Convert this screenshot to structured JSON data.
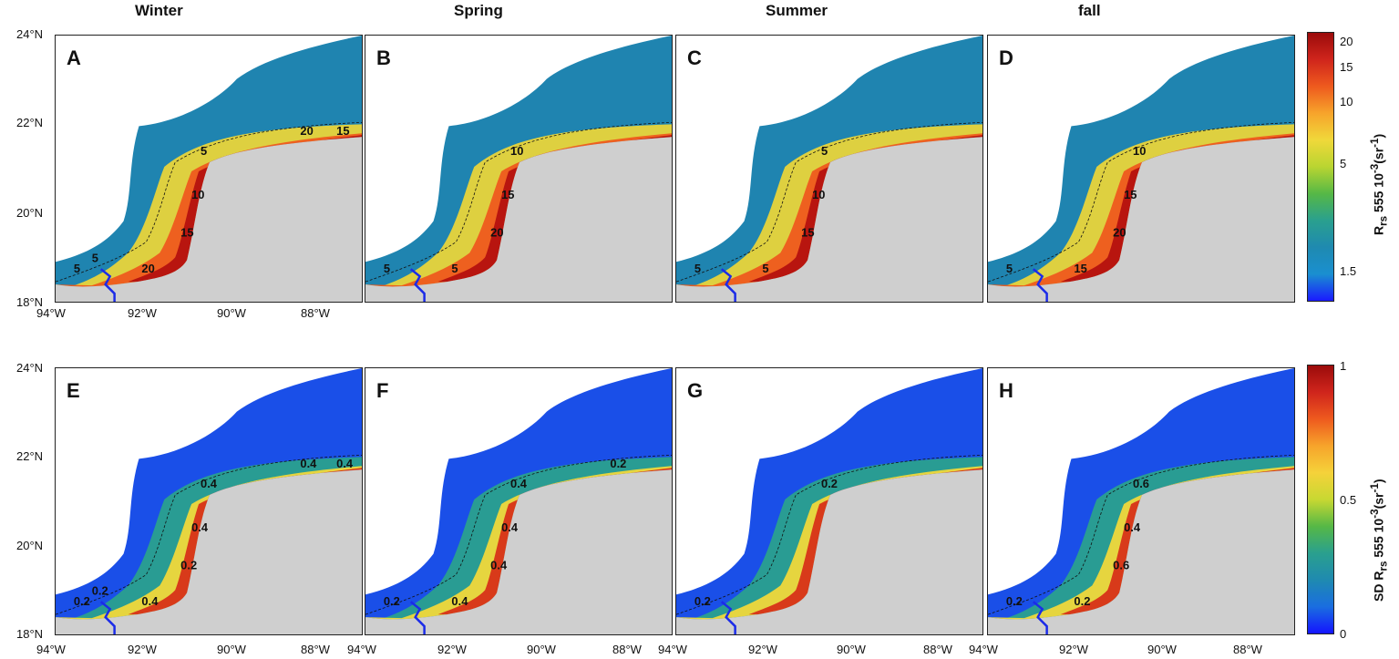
{
  "seasons": [
    "Winter",
    "Spring",
    "Summer",
    "fall"
  ],
  "rows": [
    {
      "panels": [
        {
          "letter": "A",
          "contours": [
            "5",
            "5",
            "10",
            "15",
            "20",
            "20",
            "15",
            "5"
          ]
        },
        {
          "letter": "B",
          "contours": [
            "5",
            "10",
            "15",
            "20",
            "5"
          ]
        },
        {
          "letter": "C",
          "contours": [
            "5",
            "5",
            "10",
            "15",
            "5"
          ]
        },
        {
          "letter": "D",
          "contours": [
            "5",
            "10",
            "15",
            "20",
            "15"
          ]
        }
      ],
      "colorbar": {
        "title": "Rrs 555 10-3 (sr-1)",
        "title_parts": {
          "main": "R",
          "sub": "rs",
          "after": " 555 10",
          "sup": "-3",
          "tail": "(sr",
          "sup2": "-1",
          "end": ")"
        },
        "ticks": [
          "20",
          "15",
          "10",
          "5",
          "1.5"
        ],
        "scale": "log",
        "colors": [
          "#1a1aff",
          "#1a8fd0",
          "#1f8ab0",
          "#2aa08e",
          "#56b846",
          "#b9d531",
          "#f0d83a",
          "#f7a42b",
          "#ee5a1e",
          "#d0251c",
          "#9b0b0b"
        ]
      }
    },
    {
      "panels": [
        {
          "letter": "E",
          "contours": [
            "0.2",
            "0.4",
            "0.4",
            "0.2",
            "0.4",
            "0.4",
            "0.4",
            "0.2"
          ]
        },
        {
          "letter": "F",
          "contours": [
            "0.2",
            "0.4",
            "0.4",
            "0.4",
            "0.4",
            "0.2"
          ]
        },
        {
          "letter": "G",
          "contours": [
            "0.2",
            "0.2"
          ]
        },
        {
          "letter": "H",
          "contours": [
            "0.2",
            "0.6",
            "0.4",
            "0.6",
            "0.2"
          ]
        }
      ],
      "colorbar": {
        "title": "SD Rrs 555 10-3 (sr-1)",
        "title_parts": {
          "main": "SD R",
          "sub": "rs",
          "after": " 555 10",
          "sup": "-3",
          "tail": "(sr",
          "sup2": "-1",
          "end": ")"
        },
        "ticks": [
          "1",
          "0.5",
          "0"
        ],
        "scale": "linear",
        "colors": [
          "#1414ff",
          "#1a6ee0",
          "#1f8ab0",
          "#2aa08e",
          "#56b846",
          "#c8d832",
          "#f5d23a",
          "#f7a42b",
          "#ee5a1e",
          "#d0251c",
          "#9b0b0b"
        ]
      }
    }
  ],
  "axes": {
    "y_ticks": [
      "24°N",
      "22°N",
      "20°N",
      "18°N"
    ],
    "x_ticks": [
      "94°W",
      "92°W",
      "90°W",
      "88°W"
    ]
  },
  "map_colors": {
    "land": "#cfcfcf",
    "river": "#1b2be8",
    "outline": "#111111"
  }
}
